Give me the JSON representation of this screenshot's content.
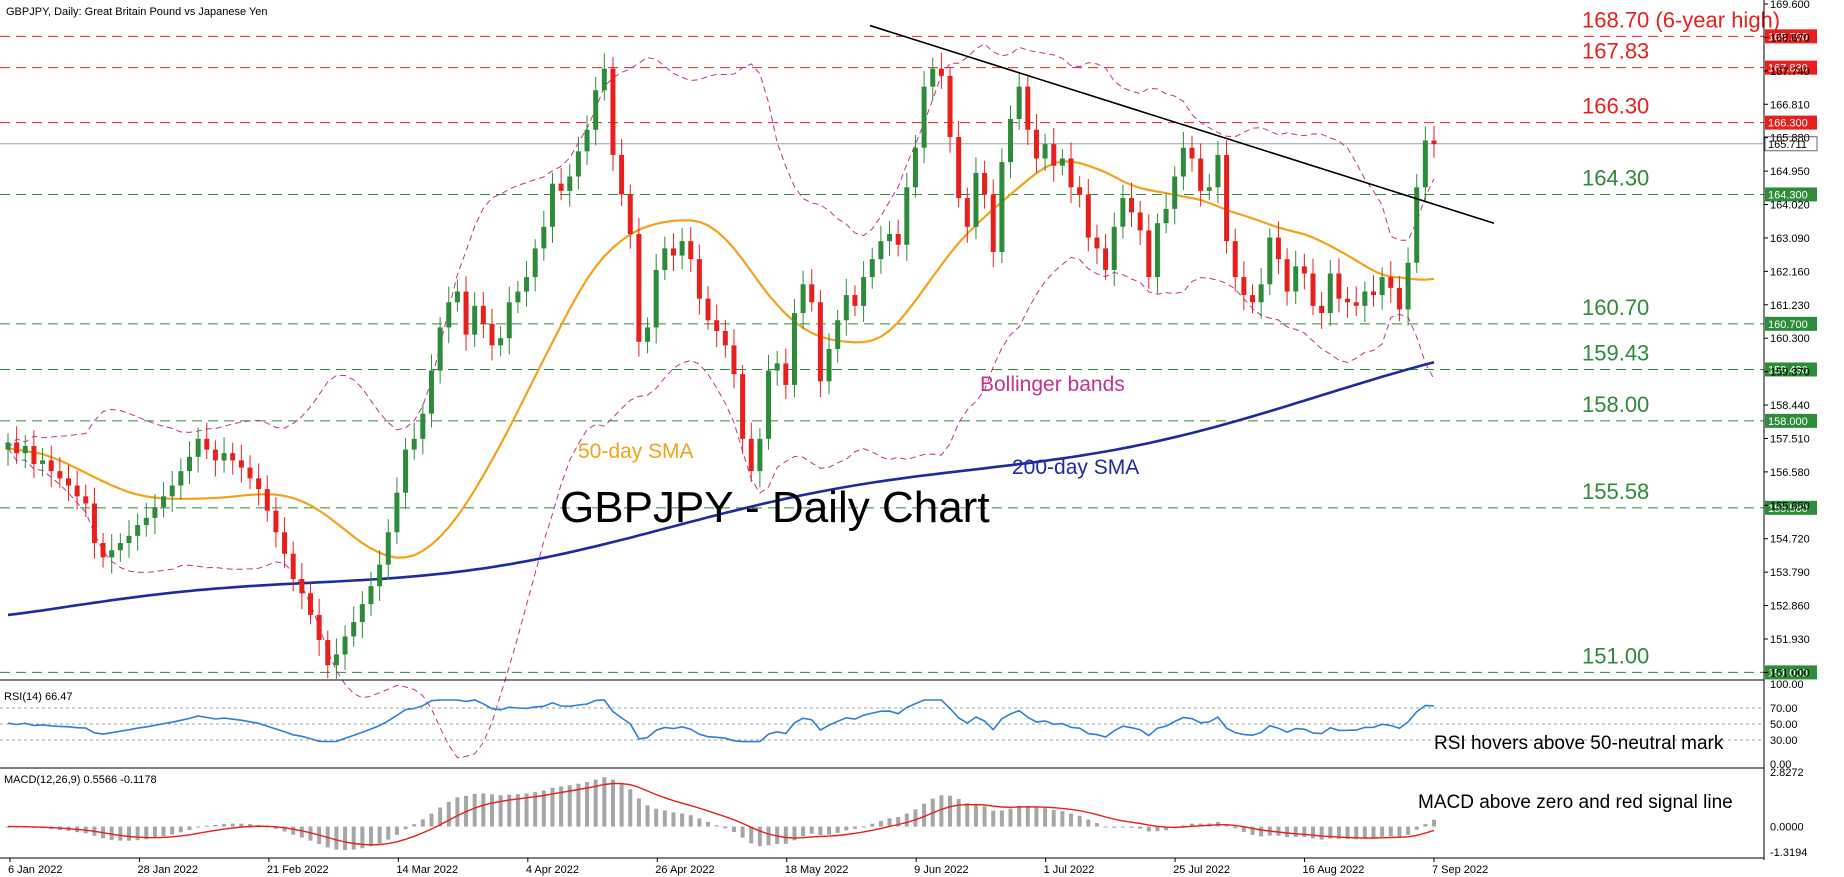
{
  "header": {
    "title": "GBPJPY, Daily:  Great Britain Pound vs Japanese Yen"
  },
  "chart_data": {
    "type": "candlestick",
    "symbol": "GBPJPY",
    "timeframe": "Daily",
    "title": "GBPJPY - Daily Chart",
    "price_ticks": [
      "169.600",
      "168.670",
      "167.740",
      "166.810",
      "165.880",
      "164.950",
      "164.020",
      "163.090",
      "162.160",
      "161.230",
      "160.300",
      "159.370",
      "158.440",
      "157.510",
      "156.580",
      "155.650",
      "154.720",
      "153.790",
      "152.860",
      "151.930",
      "151.000"
    ],
    "x_ticks": [
      "6 Jan 2022",
      "28 Jan 2022",
      "21 Feb 2022",
      "14 Mar 2022",
      "4 Apr 2022",
      "26 Apr 2022",
      "18 May 2022",
      "9 Jun 2022",
      "1 Jul 2022",
      "25 Jul 2022",
      "16 Aug 2022",
      "7 Sep 2022"
    ],
    "current_price": "165.711",
    "levels": [
      {
        "price": 168.7,
        "label": "168.70 (6-year high)",
        "box": "168.700",
        "color": "#e8201c"
      },
      {
        "price": 167.83,
        "label": "167.83",
        "box": "167.830",
        "color": "#e8201c"
      },
      {
        "price": 166.3,
        "label": "166.30",
        "box": "166.300",
        "color": "#e8201c"
      },
      {
        "price": 164.3,
        "label": "164.30",
        "box": "164.300",
        "color": "#2e8b3a"
      },
      {
        "price": 160.7,
        "label": "160.70",
        "box": "160.700",
        "color": "#2e8b3a"
      },
      {
        "price": 159.43,
        "label": "159.43",
        "box": "159.430",
        "color": "#2e8b3a"
      },
      {
        "price": 158.0,
        "label": "158.00",
        "box": "158.000",
        "color": "#2e8b3a"
      },
      {
        "price": 155.58,
        "label": "155.58",
        "box": "155.580",
        "color": "#2e8b3a"
      },
      {
        "price": 151.0,
        "label": "151.00",
        "box": "151.000",
        "color": "#2e8b3a"
      }
    ],
    "annotations": {
      "sma50": "50-day SMA",
      "sma200": "200-day SMA",
      "bollinger": "Bollinger bands",
      "rsi_note": "RSI hovers above 50-neutral mark",
      "macd_note": "MACD above zero and red signal line"
    },
    "colors": {
      "bull": "#2e8b3a",
      "bear": "#e8201c",
      "sma50": "#f5a21b",
      "sma200": "#1c2c9c",
      "bollinger": "#c2338a",
      "rsi": "#2f80d8",
      "macd_hist": "#a6a6a6",
      "macd_signal": "#e8201c",
      "trend": "#000000"
    },
    "closes": [
      157.4,
      157.1,
      157.3,
      156.8,
      156.9,
      156.6,
      156.4,
      156.2,
      155.9,
      155.7,
      154.6,
      154.2,
      154.4,
      154.6,
      154.8,
      155.1,
      155.3,
      155.6,
      155.9,
      156.2,
      156.6,
      157.0,
      157.5,
      157.2,
      156.9,
      157.1,
      156.9,
      156.7,
      156.4,
      156.1,
      155.5,
      154.9,
      154.3,
      153.6,
      153.2,
      152.6,
      151.9,
      151.2,
      151.5,
      152.0,
      152.4,
      152.9,
      153.4,
      154.0,
      154.9,
      156.0,
      157.2,
      157.5,
      158.2,
      159.4,
      160.6,
      161.3,
      161.6,
      160.4,
      161.2,
      160.7,
      160.1,
      160.3,
      161.3,
      161.6,
      162.0,
      162.8,
      163.4,
      164.6,
      164.4,
      164.8,
      165.5,
      166.1,
      167.2,
      167.8,
      165.4,
      164.3,
      163.2,
      160.2,
      160.6,
      162.2,
      162.8,
      162.6,
      163.0,
      162.5,
      161.4,
      160.8,
      160.5,
      160.1,
      159.3,
      157.5,
      156.6,
      157.5,
      159.4,
      159.6,
      159.0,
      161.0,
      161.8,
      161.3,
      159.1,
      160.0,
      160.8,
      161.5,
      161.2,
      162.0,
      162.5,
      163.0,
      163.2,
      162.9,
      164.5,
      165.6,
      167.3,
      167.8,
      167.6,
      165.9,
      164.2,
      163.4,
      164.9,
      164.3,
      162.7,
      165.2,
      166.4,
      167.3,
      166.1,
      165.3,
      165.7,
      165.1,
      165.3,
      164.5,
      164.3,
      163.1,
      162.8,
      162.2,
      163.4,
      164.2,
      163.8,
      163.3,
      162.0,
      163.5,
      163.9,
      164.8,
      165.6,
      165.3,
      164.4,
      164.5,
      165.4,
      163.0,
      162.0,
      161.5,
      161.3,
      161.8,
      163.1,
      162.5,
      161.6,
      162.3,
      162.1,
      161.2,
      161.0,
      162.1,
      161.4,
      161.3,
      161.2,
      161.6,
      161.5,
      162.0,
      161.7,
      161.1,
      162.4,
      164.5,
      165.8,
      165.7
    ],
    "rsi": {
      "label": "RSI(14) 66.47",
      "ticks": [
        "100.00",
        "70.00",
        "50.00",
        "30.00",
        "0.00"
      ]
    },
    "macd": {
      "label": "MACD(12,26,9) 0.5566 -0.1178",
      "ticks": [
        "2.8272",
        "0.0000",
        "-1.3194"
      ]
    }
  }
}
